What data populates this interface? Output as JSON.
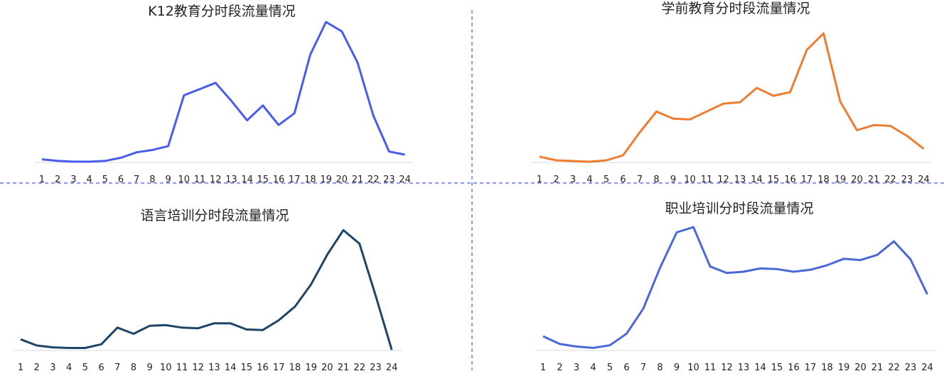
{
  "chart_data": [
    {
      "type": "line",
      "title": "K12教育分时段流量情况",
      "color": "#4a5cf0",
      "categories": [
        "1",
        "2",
        "3",
        "4",
        "5",
        "6",
        "7",
        "8",
        "9",
        "10",
        "11",
        "12",
        "13",
        "14",
        "15",
        "16",
        "17",
        "18",
        "19",
        "20",
        "21",
        "22",
        "23",
        "24"
      ],
      "values": [
        4,
        2,
        1,
        1,
        2,
        6,
        13,
        16,
        21,
        86,
        94,
        102,
        79,
        54,
        73,
        48,
        63,
        138,
        180,
        168,
        128,
        60,
        14,
        10
      ],
      "ylim": [
        0,
        190
      ],
      "xlabel": "",
      "ylabel": ""
    },
    {
      "type": "line",
      "title": "学前教育分时段流量情况",
      "color": "#ee7d31",
      "categories": [
        "1",
        "2",
        "3",
        "4",
        "5",
        "6",
        "7",
        "8",
        "9",
        "10",
        "11",
        "12",
        "13",
        "14",
        "15",
        "16",
        "17",
        "18",
        "19",
        "20",
        "21",
        "22",
        "23",
        "24"
      ],
      "values": [
        8,
        3,
        2,
        1,
        3,
        10,
        42,
        71,
        61,
        60,
        71,
        82,
        84,
        104,
        93,
        98,
        157,
        180,
        85,
        45,
        52,
        51,
        37,
        19
      ],
      "ylim": [
        0,
        185
      ],
      "xlabel": "",
      "ylabel": ""
    },
    {
      "type": "line",
      "title": "语言培训分时段流量情况",
      "color": "#1e4468",
      "categories": [
        "1",
        "2",
        "3",
        "4",
        "5",
        "6",
        "7",
        "8",
        "9",
        "10",
        "11",
        "12",
        "13",
        "14",
        "15",
        "16",
        "17",
        "18",
        "19",
        "20",
        "21",
        "22",
        "23",
        "24"
      ],
      "values": [
        18,
        8,
        5,
        4,
        4,
        10,
        37,
        27,
        40,
        41,
        37,
        36,
        44,
        44,
        34,
        33,
        49,
        71,
        107,
        155,
        195,
        173,
        89,
        1
      ],
      "ylim": [
        0,
        200
      ],
      "xlabel": "",
      "ylabel": ""
    },
    {
      "type": "line",
      "title": "职业培训分时段流量情况",
      "color": "#4a69d6",
      "categories": [
        "1",
        "2",
        "3",
        "4",
        "5",
        "6",
        "7",
        "8",
        "9",
        "10",
        "11",
        "12",
        "13",
        "14",
        "15",
        "16",
        "17",
        "18",
        "19",
        "20",
        "21",
        "22",
        "23",
        "24"
      ],
      "values": [
        22,
        10,
        6,
        4,
        8,
        26,
        65,
        128,
        183,
        191,
        130,
        120,
        122,
        127,
        126,
        122,
        125,
        132,
        142,
        140,
        148,
        169,
        141,
        87
      ],
      "ylim": [
        0,
        200
      ],
      "xlabel": "",
      "ylabel": ""
    }
  ]
}
